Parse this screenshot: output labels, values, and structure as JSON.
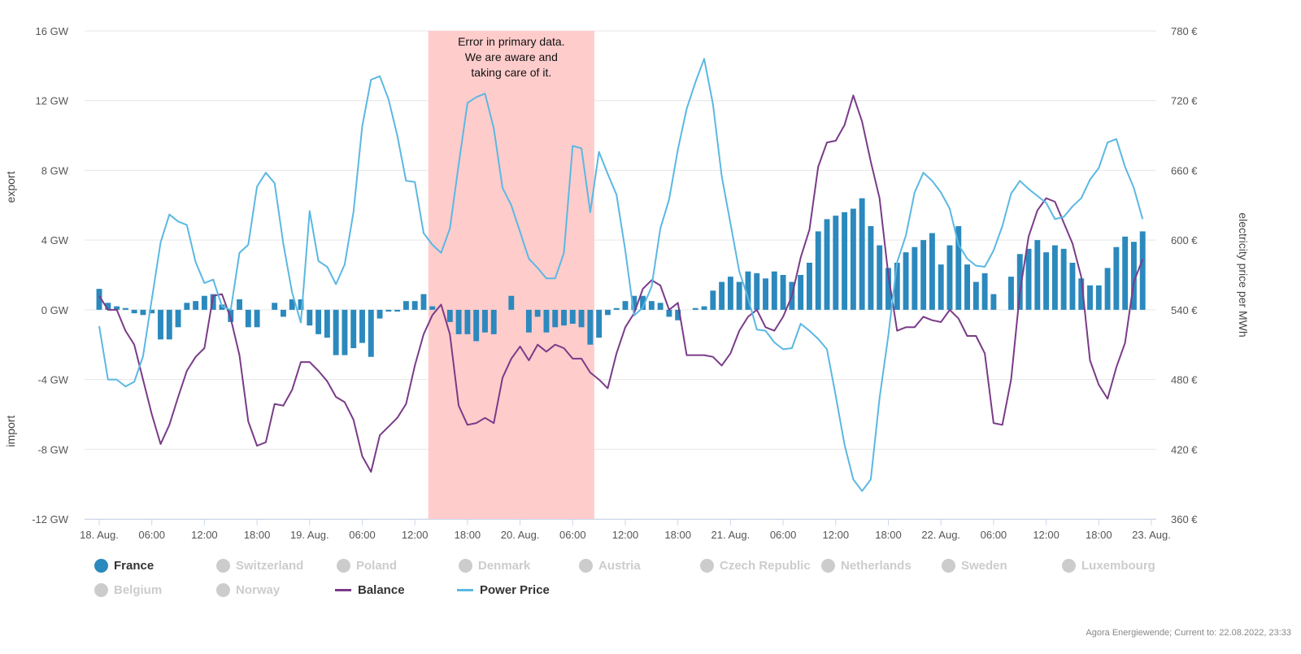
{
  "chart_data": {
    "type": "bar+line",
    "annotation": [
      "Error in primary data.",
      "We are aware and",
      "taking care of it."
    ],
    "annotation_color": "#ffcccc",
    "error_band": {
      "from": 38,
      "to": 56
    },
    "y_left": {
      "label_top": "export",
      "label_bottom": "import",
      "min": -12,
      "max": 16,
      "step": 4,
      "unit": "GW",
      "ticks": [
        "16 GW",
        "12 GW",
        "8 GW",
        "4 GW",
        "0 GW",
        "-4 GW",
        "-8 GW",
        "-12 GW"
      ]
    },
    "y_right": {
      "label": "electricity price per MWh",
      "min": 360,
      "max": 780,
      "step": 60,
      "ticks": [
        "780 €",
        "720 €",
        "660 €",
        "600 €",
        "540 €",
        "480 €",
        "420 €",
        "360 €"
      ]
    },
    "x": {
      "min": 0,
      "max": 120,
      "ticks": [
        {
          "at": 0,
          "label": "18. Aug."
        },
        {
          "at": 6,
          "label": "06:00"
        },
        {
          "at": 12,
          "label": "12:00"
        },
        {
          "at": 18,
          "label": "18:00"
        },
        {
          "at": 24,
          "label": "19. Aug."
        },
        {
          "at": 30,
          "label": "06:00"
        },
        {
          "at": 36,
          "label": "12:00"
        },
        {
          "at": 42,
          "label": "18:00"
        },
        {
          "at": 48,
          "label": "20. Aug."
        },
        {
          "at": 54,
          "label": "06:00"
        },
        {
          "at": 60,
          "label": "12:00"
        },
        {
          "at": 66,
          "label": "18:00"
        },
        {
          "at": 72,
          "label": "21. Aug."
        },
        {
          "at": 78,
          "label": "06:00"
        },
        {
          "at": 84,
          "label": "12:00"
        },
        {
          "at": 90,
          "label": "18:00"
        },
        {
          "at": 96,
          "label": "22. Aug."
        },
        {
          "at": 102,
          "label": "06:00"
        },
        {
          "at": 108,
          "label": "12:00"
        },
        {
          "at": 114,
          "label": "18:00"
        },
        {
          "at": 120,
          "label": "23. Aug."
        }
      ]
    },
    "series": [
      {
        "name": "France",
        "type": "bar",
        "color": "#2b89bd",
        "axis": "left",
        "visible": true,
        "values": [
          1.2,
          0.4,
          0.2,
          0.1,
          -0.2,
          -0.3,
          -0.2,
          -1.7,
          -1.7,
          -1.0,
          0.4,
          0.5,
          0.8,
          0.9,
          0.3,
          -0.7,
          0.6,
          -1.0,
          -1.0,
          0,
          0.4,
          -0.4,
          0.6,
          0.6,
          -0.9,
          -1.4,
          -1.6,
          -2.6,
          -2.6,
          -2.2,
          -1.9,
          -2.7,
          -0.5,
          -0.1,
          -0.1,
          0.5,
          0.5,
          0.9,
          0.2,
          0,
          -0.7,
          -1.4,
          -1.4,
          -1.8,
          -1.3,
          -1.4,
          0,
          0.8,
          0,
          -1.3,
          -0.4,
          -1.3,
          -1.0,
          -0.9,
          -0.8,
          -1.0,
          -2.0,
          -1.6,
          -0.3,
          0.1,
          0.5,
          0.8,
          0.8,
          0.5,
          0.4,
          -0.4,
          -0.6,
          0,
          0.1,
          0.2,
          1.1,
          1.6,
          1.9,
          1.6,
          2.2,
          2.1,
          1.8,
          2.2,
          2.0,
          1.6,
          2.0,
          2.7,
          4.5,
          5.2,
          5.4,
          5.6,
          5.8,
          6.4,
          4.8,
          3.7,
          2.4,
          2.7,
          3.3,
          3.6,
          4.0,
          4.4,
          2.6,
          3.7,
          4.8,
          2.6,
          1.6,
          2.1,
          0.9,
          0,
          1.9,
          3.2,
          3.5,
          4.0,
          3.3,
          3.7,
          3.5,
          2.7,
          1.8,
          1.4,
          1.4,
          2.4,
          3.6,
          4.2,
          3.9,
          4.5
        ]
      },
      {
        "name": "Switzerland",
        "type": "bar",
        "color": "#cccccc",
        "visible": false
      },
      {
        "name": "Poland",
        "type": "bar",
        "color": "#cccccc",
        "visible": false
      },
      {
        "name": "Denmark",
        "type": "bar",
        "color": "#cccccc",
        "visible": false
      },
      {
        "name": "Austria",
        "type": "bar",
        "color": "#cccccc",
        "visible": false
      },
      {
        "name": "Czech Republic",
        "type": "bar",
        "color": "#cccccc",
        "visible": false
      },
      {
        "name": "Netherlands",
        "type": "bar",
        "color": "#cccccc",
        "visible": false
      },
      {
        "name": "Sweden",
        "type": "bar",
        "color": "#cccccc",
        "visible": false
      },
      {
        "name": "Luxembourg",
        "type": "bar",
        "color": "#cccccc",
        "visible": false
      },
      {
        "name": "Belgium",
        "type": "bar",
        "color": "#cccccc",
        "visible": false
      },
      {
        "name": "Norway",
        "type": "bar",
        "color": "#cccccc",
        "visible": false
      },
      {
        "name": "Balance",
        "type": "line",
        "color": "#7a3b88",
        "axis": "left",
        "visible": true,
        "values": [
          0.8,
          0.0,
          0.0,
          -1.2,
          -2.0,
          -4.0,
          -6.0,
          -7.7,
          -6.6,
          -5.0,
          -3.5,
          -2.7,
          -2.2,
          0.8,
          0.9,
          -0.5,
          -2.6,
          -6.4,
          -7.8,
          -7.6,
          -5.4,
          -5.5,
          -4.6,
          -3.0,
          -3.0,
          -3.5,
          -4.1,
          -5.0,
          -5.3,
          -6.3,
          -8.4,
          -9.3,
          -7.2,
          -6.7,
          -6.2,
          -5.4,
          -3.2,
          -1.4,
          -0.3,
          0.3,
          -1.4,
          -5.5,
          -6.6,
          -6.5,
          -6.2,
          -6.5,
          -3.9,
          -2.8,
          -2.1,
          -2.9,
          -2.0,
          -2.4,
          -2.0,
          -2.2,
          -2.8,
          -2.8,
          -3.6,
          -4.0,
          -4.5,
          -2.5,
          -1.0,
          -0.2,
          1.2,
          1.7,
          1.4,
          0.0,
          0.4,
          -2.6,
          -2.6,
          -2.6,
          -2.7,
          -3.2,
          -2.5,
          -1.2,
          -0.4,
          0.0,
          -1.0,
          -1.2,
          -0.4,
          0.8,
          3.0,
          4.6,
          8.2,
          9.6,
          9.7,
          10.6,
          12.3,
          10.8,
          8.5,
          6.4,
          2.0,
          -1.2,
          -1.0,
          -1.0,
          -0.4,
          -0.6,
          -0.7,
          0.0,
          -0.5,
          -1.5,
          -1.5,
          -2.5,
          -6.5,
          -6.6,
          -4.0,
          1.0,
          4.2,
          5.7,
          6.4,
          6.2,
          5.0,
          3.8,
          1.9,
          -2.9,
          -4.3,
          -5.1,
          -3.3,
          -1.9,
          1.6,
          2.9
        ]
      },
      {
        "name": "Power Price",
        "type": "line",
        "color": "#5bb8e2",
        "axis": "right",
        "visible": true,
        "values": [
          526,
          480,
          480,
          474,
          478,
          500,
          549,
          598,
          622,
          616,
          613,
          581,
          563,
          566,
          543,
          540,
          589,
          596,
          646,
          658,
          649,
          597,
          555,
          529,
          625,
          582,
          577,
          562,
          579,
          624,
          698,
          738,
          741,
          721,
          690,
          651,
          650,
          606,
          596,
          589,
          610,
          665,
          718,
          723,
          726,
          696,
          645,
          630,
          607,
          584,
          576,
          567,
          567,
          589,
          681,
          679,
          624,
          676,
          657,
          639,
          591,
          535,
          542,
          560,
          610,
          635,
          678,
          713,
          736,
          756,
          717,
          655,
          614,
          573,
          550,
          523,
          522,
          512,
          506,
          507,
          528,
          522,
          515,
          506,
          466,
          424,
          394,
          384,
          394,
          464,
          518,
          581,
          604,
          641,
          658,
          651,
          641,
          627,
          596,
          584,
          578,
          577,
          591,
          612,
          640,
          651,
          644,
          638,
          632,
          618,
          620,
          629,
          636,
          652,
          662,
          684,
          687,
          663,
          645,
          618
        ]
      }
    ]
  },
  "credits": "Agora Energiewende; Current to: 22.08.2022, 23:33"
}
